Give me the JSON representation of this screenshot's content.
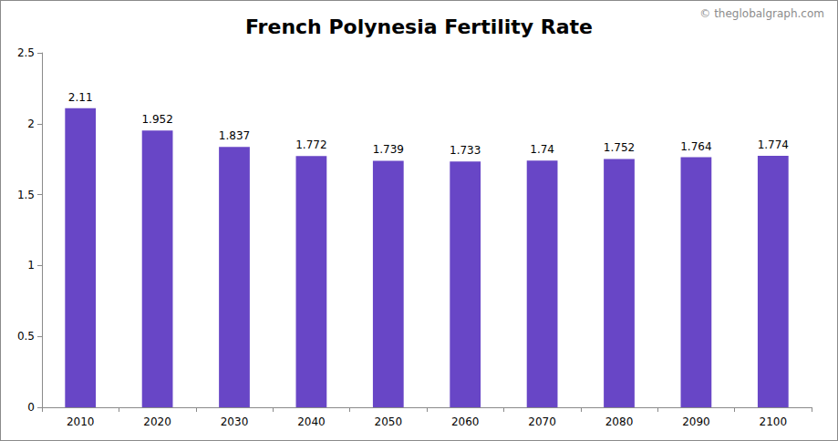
{
  "chart_data": {
    "type": "bar",
    "title": "French Polynesia Fertility Rate",
    "annotations": [
      "© theglobalgraph.com"
    ],
    "categories": [
      "2010",
      "2020",
      "2030",
      "2040",
      "2050",
      "2060",
      "2070",
      "2080",
      "2090",
      "2100"
    ],
    "values": [
      2.11,
      1.952,
      1.837,
      1.772,
      1.739,
      1.733,
      1.74,
      1.752,
      1.764,
      1.774
    ],
    "color": "#6846c6",
    "ylim": [
      0,
      2.5
    ],
    "yticks": [
      0,
      0.5,
      1,
      1.5,
      2,
      2.5
    ],
    "grid": false,
    "data_labels": true
  }
}
